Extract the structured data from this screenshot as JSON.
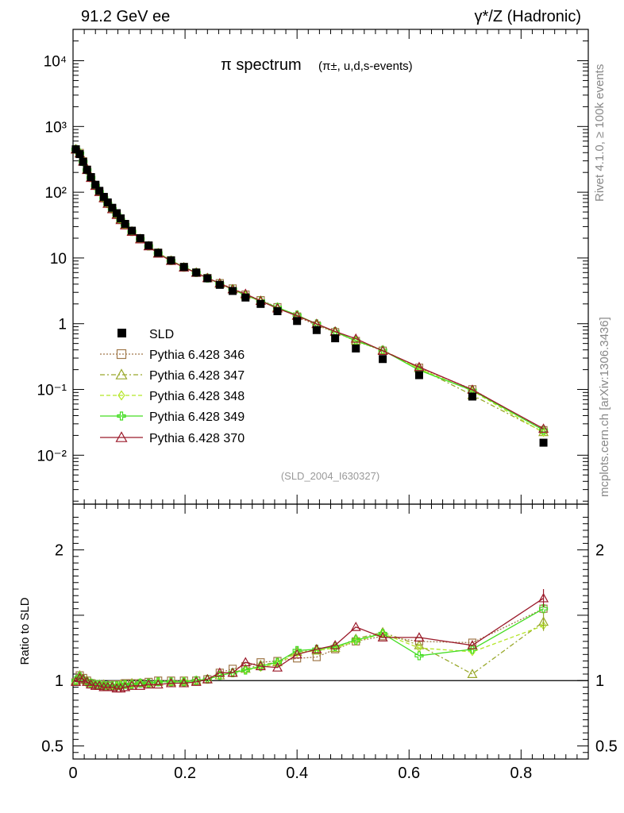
{
  "header": {
    "left": "91.2 GeV ee",
    "right": "γ*/Z (Hadronic)"
  },
  "side": {
    "top": "Rivet 4.1.0, ≥ 100k events",
    "bottom": "mcplots.cern.ch [arXiv:1306.3436]"
  },
  "chart_data": {
    "type": "line",
    "title_main": "π spectrum",
    "title_sub": "(π±, u,d,s-events)",
    "tag": "(SLD_2004_I630327)",
    "xlim": [
      0,
      0.92
    ],
    "ylim_main": [
      0.0018,
      30000
    ],
    "ylim_ratio": [
      0.4,
      2.35
    ],
    "ylabel_ratio": "Ratio to SLD",
    "x_ticks": [
      "0",
      "0.2",
      "0.4",
      "0.6",
      "0.8"
    ],
    "main_y_ticks": [
      "10⁴",
      "10³",
      "10²",
      "10",
      "1",
      "10⁻¹",
      "10⁻²"
    ],
    "ratio_y_ticks": [
      "2",
      "1",
      "0.5"
    ],
    "x": [
      0.005,
      0.012,
      0.018,
      0.025,
      0.032,
      0.04,
      0.047,
      0.055,
      0.062,
      0.07,
      0.078,
      0.085,
      0.093,
      0.105,
      0.12,
      0.135,
      0.152,
      0.175,
      0.198,
      0.22,
      0.24,
      0.262,
      0.285,
      0.308,
      0.335,
      0.365,
      0.4,
      0.435,
      0.468,
      0.505,
      0.553,
      0.618,
      0.713,
      0.84
    ],
    "data": {
      "name": "SLD",
      "values": [
        450,
        380,
        290,
        220,
        170,
        130,
        105,
        85,
        70,
        58,
        48,
        40,
        33,
        26,
        20,
        15.5,
        12,
        9.2,
        7.3,
        6.0,
        4.9,
        3.9,
        3.15,
        2.5,
        2.0,
        1.55,
        1.1,
        0.8,
        0.6,
        0.42,
        0.29,
        0.165,
        0.078,
        0.0155
      ]
    },
    "series": [
      {
        "name": "Pythia 6.428 346",
        "color": "#a0784a",
        "style": "dotted",
        "marker": "square",
        "ratio": [
          0.99,
          1.04,
          1.02,
          1.0,
          0.98,
          0.97,
          0.97,
          0.96,
          0.96,
          0.97,
          0.97,
          0.97,
          0.98,
          0.98,
          0.98,
          0.99,
          1.0,
          1.0,
          1.0,
          1.0,
          1.01,
          1.06,
          1.09,
          1.11,
          1.14,
          1.15,
          1.17,
          1.18,
          1.24,
          1.3,
          1.34,
          1.3,
          1.29,
          1.55
        ]
      },
      {
        "name": "Pythia 6.428 347",
        "color": "#99a82b",
        "style": "dashdot",
        "marker": "triangle",
        "ratio": [
          1.0,
          1.04,
          1.01,
          1.0,
          0.98,
          0.97,
          0.97,
          0.97,
          0.96,
          0.96,
          0.96,
          0.97,
          0.97,
          0.98,
          0.98,
          0.98,
          0.99,
          0.99,
          0.99,
          1.0,
          1.01,
          1.04,
          1.06,
          1.09,
          1.12,
          1.14,
          1.22,
          1.23,
          1.25,
          1.32,
          1.37,
          1.27,
          1.05,
          1.45
        ]
      },
      {
        "name": "Pythia 6.428 348",
        "color": "#b4e626",
        "style": "dashed",
        "marker": "diamond",
        "ratio": [
          1.0,
          1.03,
          1.01,
          0.99,
          0.98,
          0.97,
          0.97,
          0.96,
          0.96,
          0.96,
          0.96,
          0.97,
          0.97,
          0.97,
          0.98,
          0.98,
          0.99,
          0.99,
          1.0,
          1.0,
          1.01,
          1.04,
          1.06,
          1.08,
          1.1,
          1.13,
          1.21,
          1.23,
          1.25,
          1.3,
          1.36,
          1.25,
          1.22,
          1.42
        ]
      },
      {
        "name": "Pythia 6.428 349",
        "color": "#44dd22",
        "style": "solid",
        "marker": "cross",
        "ratio": [
          1.0,
          1.03,
          1.01,
          0.99,
          0.98,
          0.97,
          0.97,
          0.96,
          0.96,
          0.96,
          0.96,
          0.96,
          0.97,
          0.97,
          0.98,
          0.98,
          0.99,
          0.99,
          0.99,
          1.0,
          1.01,
          1.04,
          1.06,
          1.08,
          1.11,
          1.14,
          1.23,
          1.24,
          1.26,
          1.31,
          1.36,
          1.19,
          1.24,
          1.55
        ]
      },
      {
        "name": "Pythia 6.428 370",
        "color": "#9b1a2a",
        "style": "solid",
        "marker": "triangle",
        "ratio": [
          0.99,
          1.02,
          1.01,
          0.99,
          0.97,
          0.96,
          0.96,
          0.95,
          0.95,
          0.95,
          0.94,
          0.94,
          0.95,
          0.96,
          0.96,
          0.97,
          0.97,
          0.98,
          0.98,
          0.99,
          1.01,
          1.06,
          1.06,
          1.14,
          1.11,
          1.1,
          1.2,
          1.24,
          1.27,
          1.41,
          1.33,
          1.33,
          1.27,
          1.63
        ]
      }
    ]
  }
}
